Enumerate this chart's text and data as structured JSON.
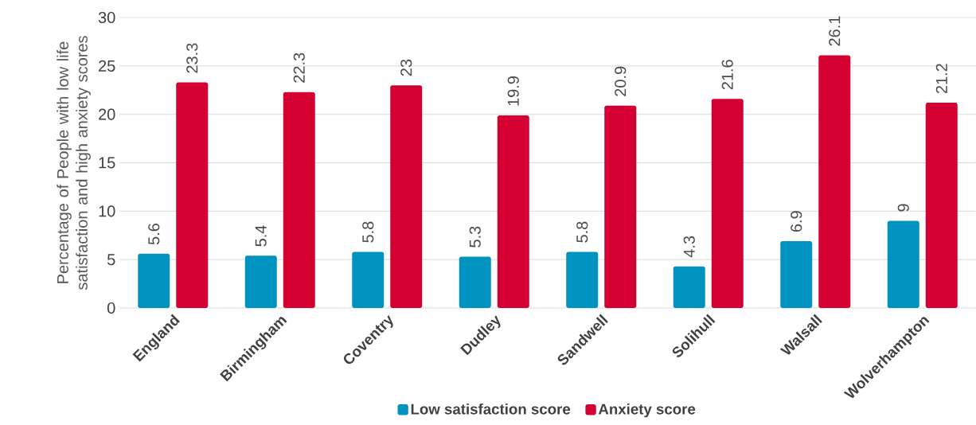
{
  "chart_data": {
    "type": "bar",
    "ylabel": "Percentage of People with low life satisfaction and high anxiety scores",
    "categories": [
      "England",
      "Birmingham",
      "Coventry",
      "Dudley",
      "Sandwell",
      "Solihull",
      "Walsall",
      "Wolverhampton"
    ],
    "series": [
      {
        "name": "Low satisfaction score",
        "color": "#0093c0",
        "values": [
          5.6,
          5.4,
          5.8,
          5.3,
          5.8,
          4.3,
          6.9,
          9
        ]
      },
      {
        "name": "Anxiety score",
        "color": "#d50032",
        "values": [
          23.3,
          22.3,
          23,
          19.9,
          20.9,
          21.6,
          26.1,
          21.2
        ]
      }
    ],
    "ylim": [
      0,
      30
    ],
    "yticks": [
      0,
      5,
      10,
      15,
      20,
      25,
      30
    ],
    "grid": "y",
    "legend": "bottom",
    "data_labels": true
  }
}
